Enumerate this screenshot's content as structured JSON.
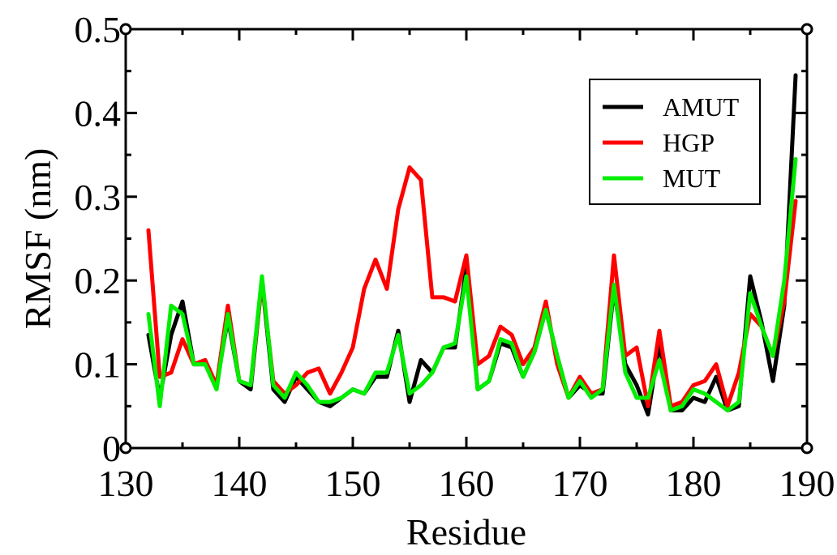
{
  "chart_data": {
    "type": "line",
    "title": "",
    "xlabel": "Residue",
    "ylabel": "RMSF (nm)",
    "xlim": [
      130,
      190
    ],
    "ylim": [
      0,
      0.5
    ],
    "xticks": [
      130,
      140,
      150,
      160,
      170,
      180,
      190
    ],
    "yticks": [
      0,
      0.1,
      0.2,
      0.3,
      0.4,
      0.5
    ],
    "ytick_labels": [
      "0",
      "0.1",
      "0.2",
      "0.3",
      "0.4",
      "0.5"
    ],
    "grid": false,
    "legend": {
      "position": "top-right"
    },
    "x": [
      132,
      133,
      134,
      135,
      136,
      137,
      138,
      139,
      140,
      141,
      142,
      143,
      144,
      145,
      146,
      147,
      148,
      149,
      150,
      151,
      152,
      153,
      154,
      155,
      156,
      157,
      158,
      159,
      160,
      161,
      162,
      163,
      164,
      165,
      166,
      167,
      168,
      169,
      170,
      171,
      172,
      173,
      174,
      175,
      176,
      177,
      178,
      179,
      180,
      181,
      182,
      183,
      184,
      185,
      186,
      187,
      188,
      189
    ],
    "series": [
      {
        "name": "AMUT",
        "color": "#000000",
        "values": [
          0.135,
          0.06,
          0.135,
          0.175,
          0.1,
          0.1,
          0.075,
          0.155,
          0.08,
          0.07,
          0.2,
          0.07,
          0.055,
          0.085,
          0.07,
          0.055,
          0.05,
          0.06,
          0.07,
          0.065,
          0.085,
          0.085,
          0.14,
          0.055,
          0.105,
          0.09,
          0.12,
          0.12,
          0.215,
          0.07,
          0.08,
          0.125,
          0.12,
          0.085,
          0.115,
          0.165,
          0.11,
          0.06,
          0.075,
          0.065,
          0.065,
          0.19,
          0.1,
          0.075,
          0.04,
          0.125,
          0.045,
          0.045,
          0.06,
          0.055,
          0.085,
          0.045,
          0.05,
          0.205,
          0.15,
          0.08,
          0.17,
          0.445
        ]
      },
      {
        "name": "HGP",
        "color": "#ff0000",
        "values": [
          0.26,
          0.085,
          0.09,
          0.13,
          0.1,
          0.105,
          0.075,
          0.17,
          0.08,
          0.075,
          0.2,
          0.08,
          0.065,
          0.075,
          0.09,
          0.095,
          0.065,
          0.09,
          0.12,
          0.19,
          0.225,
          0.19,
          0.285,
          0.335,
          0.32,
          0.18,
          0.18,
          0.175,
          0.23,
          0.1,
          0.11,
          0.145,
          0.135,
          0.1,
          0.12,
          0.175,
          0.1,
          0.06,
          0.085,
          0.065,
          0.07,
          0.23,
          0.11,
          0.12,
          0.05,
          0.14,
          0.05,
          0.055,
          0.075,
          0.08,
          0.1,
          0.05,
          0.09,
          0.16,
          0.145,
          0.11,
          0.175,
          0.295
        ]
      },
      {
        "name": "MUT",
        "color": "#00ee00",
        "values": [
          0.16,
          0.05,
          0.17,
          0.16,
          0.1,
          0.1,
          0.07,
          0.16,
          0.08,
          0.075,
          0.205,
          0.075,
          0.06,
          0.09,
          0.075,
          0.055,
          0.055,
          0.06,
          0.07,
          0.065,
          0.09,
          0.09,
          0.135,
          0.065,
          0.075,
          0.09,
          0.12,
          0.125,
          0.205,
          0.07,
          0.08,
          0.13,
          0.125,
          0.085,
          0.115,
          0.165,
          0.11,
          0.06,
          0.08,
          0.06,
          0.07,
          0.195,
          0.09,
          0.06,
          0.06,
          0.105,
          0.045,
          0.05,
          0.07,
          0.065,
          0.055,
          0.045,
          0.055,
          0.185,
          0.145,
          0.11,
          0.2,
          0.345
        ]
      }
    ]
  }
}
